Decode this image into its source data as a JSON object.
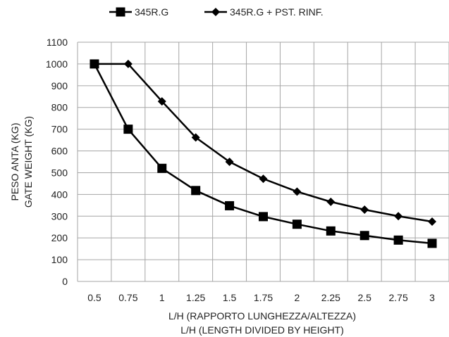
{
  "chart_data": {
    "type": "line",
    "categories": [
      "0.5",
      "0.75",
      "1",
      "1.25",
      "1.5",
      "1.75",
      "2",
      "2.25",
      "2.5",
      "2.75",
      "3"
    ],
    "series": [
      {
        "name": "345R.G",
        "marker": "square",
        "values": [
          1000,
          700,
          520,
          418,
          348,
          298,
          263,
          232,
          211,
          190,
          175
        ]
      },
      {
        "name": "345R.G + PST. RINF.",
        "marker": "diamond",
        "values": [
          1000,
          1000,
          828,
          662,
          550,
          472,
          413,
          366,
          330,
          300,
          275
        ]
      }
    ],
    "xlabel": [
      "L/H (RAPPORTO LUNGHEZZA/ALTEZZA)",
      "L/H (LENGTH DIVIDED BY HEIGHT)"
    ],
    "ylabel": [
      "PESO ANTA (KG)",
      "GATE WEIGHT (KG)"
    ],
    "ylim": [
      0,
      1100
    ],
    "ytick_step": 100,
    "yticks": [
      "0",
      "100",
      "200",
      "300",
      "400",
      "500",
      "600",
      "700",
      "800",
      "900",
      "1000",
      "1100"
    ],
    "grid": true,
    "legend_position": "top",
    "colors": {
      "series": "#000000",
      "grid": "#a6a6a6",
      "text": "#222222"
    }
  }
}
